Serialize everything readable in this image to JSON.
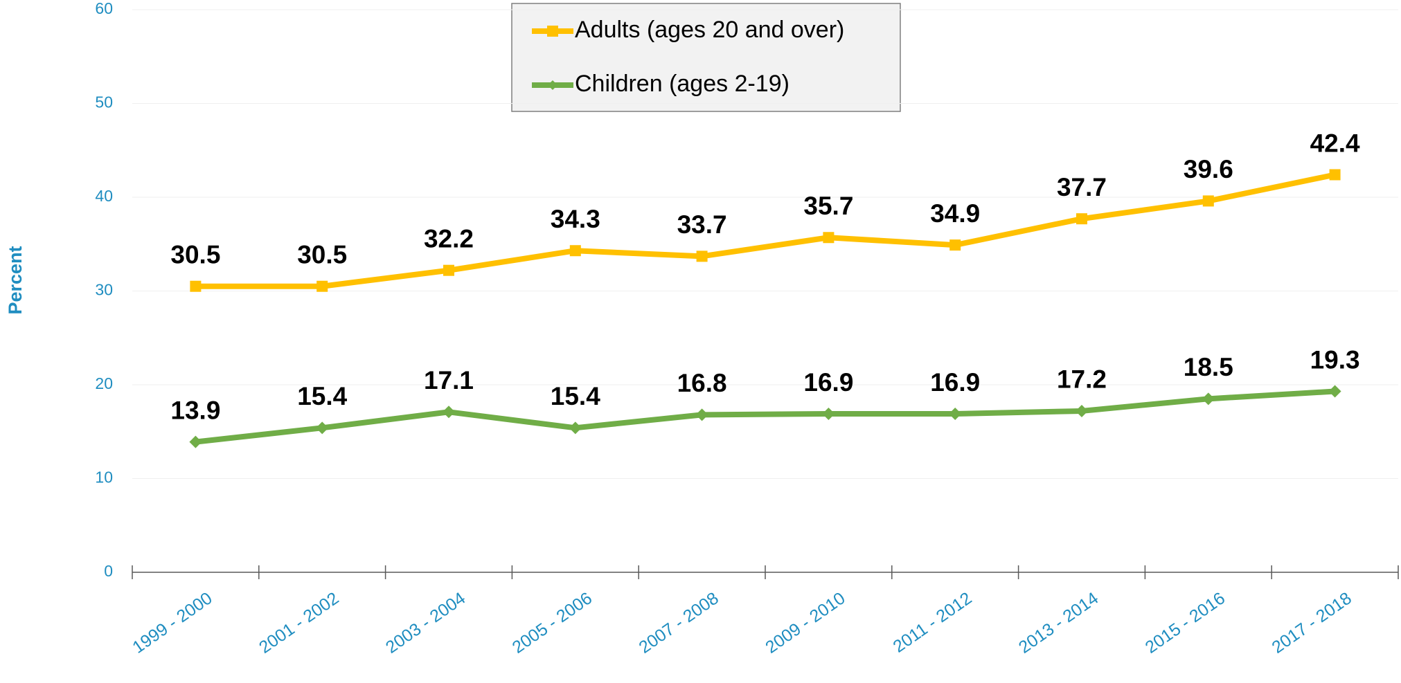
{
  "chart_data": {
    "type": "line",
    "y_label": "Percent",
    "categories": [
      "1999 - 2000",
      "2001 - 2002",
      "2003 - 2004",
      "2005 - 2006",
      "2007 - 2008",
      "2009 - 2010",
      "2011 - 2012",
      "2013 - 2014",
      "2015 - 2016",
      "2017 - 2018"
    ],
    "series": [
      {
        "name": "Adults (ages 20 and over)",
        "color": "#FFC000",
        "marker": "square",
        "values": [
          30.5,
          30.5,
          32.2,
          34.3,
          33.7,
          35.7,
          34.9,
          37.7,
          39.6,
          42.4
        ]
      },
      {
        "name": "Children (ages 2-19)",
        "color": "#70AD47",
        "marker": "diamond",
        "values": [
          13.9,
          15.4,
          17.1,
          15.4,
          16.8,
          16.9,
          16.9,
          17.2,
          18.5,
          19.3
        ]
      }
    ],
    "ylim": [
      0,
      60
    ],
    "yticks": [
      0,
      10,
      20,
      30,
      40,
      50,
      60
    ],
    "grid": true,
    "legend": "top"
  }
}
